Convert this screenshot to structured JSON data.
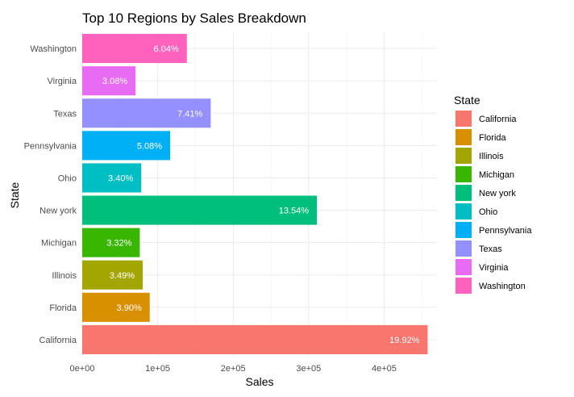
{
  "chart_data": {
    "type": "bar",
    "orientation": "horizontal",
    "title": "Top 10 Regions by Sales Breakdown",
    "xlabel": "Sales",
    "ylabel": "State",
    "xlim": [
      0,
      470000
    ],
    "x_ticks": [
      0,
      100000,
      200000,
      300000,
      400000
    ],
    "x_tick_labels": [
      "0e+00",
      "1e+05",
      "2e+05",
      "3e+05",
      "4e+05"
    ],
    "grid": true,
    "legend": {
      "title": "State",
      "placement": "right",
      "entries": [
        "California",
        "Florida",
        "Illinois",
        "Michigan",
        "New york",
        "Ohio",
        "Pennsylvania",
        "Texas",
        "Virginia",
        "Washington"
      ]
    },
    "bars": [
      {
        "category": "California",
        "value": 457688,
        "label": "19.92%",
        "color": "#F8766D"
      },
      {
        "category": "Florida",
        "value": 89474,
        "label": "3.90%",
        "color": "#D89000"
      },
      {
        "category": "Illinois",
        "value": 80166,
        "label": "3.49%",
        "color": "#A3A500"
      },
      {
        "category": "Michigan",
        "value": 76270,
        "label": "3.32%",
        "color": "#39B600"
      },
      {
        "category": "New york",
        "value": 310876,
        "label": "13.54%",
        "color": "#00BF7D"
      },
      {
        "category": "Ohio",
        "value": 78258,
        "label": "3.40%",
        "color": "#00BFC4"
      },
      {
        "category": "Pennsylvania",
        "value": 116512,
        "label": "5.08%",
        "color": "#00B0F6"
      },
      {
        "category": "Texas",
        "value": 170188,
        "label": "7.41%",
        "color": "#9590FF"
      },
      {
        "category": "Virginia",
        "value": 70637,
        "label": "3.08%",
        "color": "#E76BF3"
      },
      {
        "category": "Washington",
        "value": 138641,
        "label": "6.04%",
        "color": "#FF62BC"
      }
    ]
  }
}
